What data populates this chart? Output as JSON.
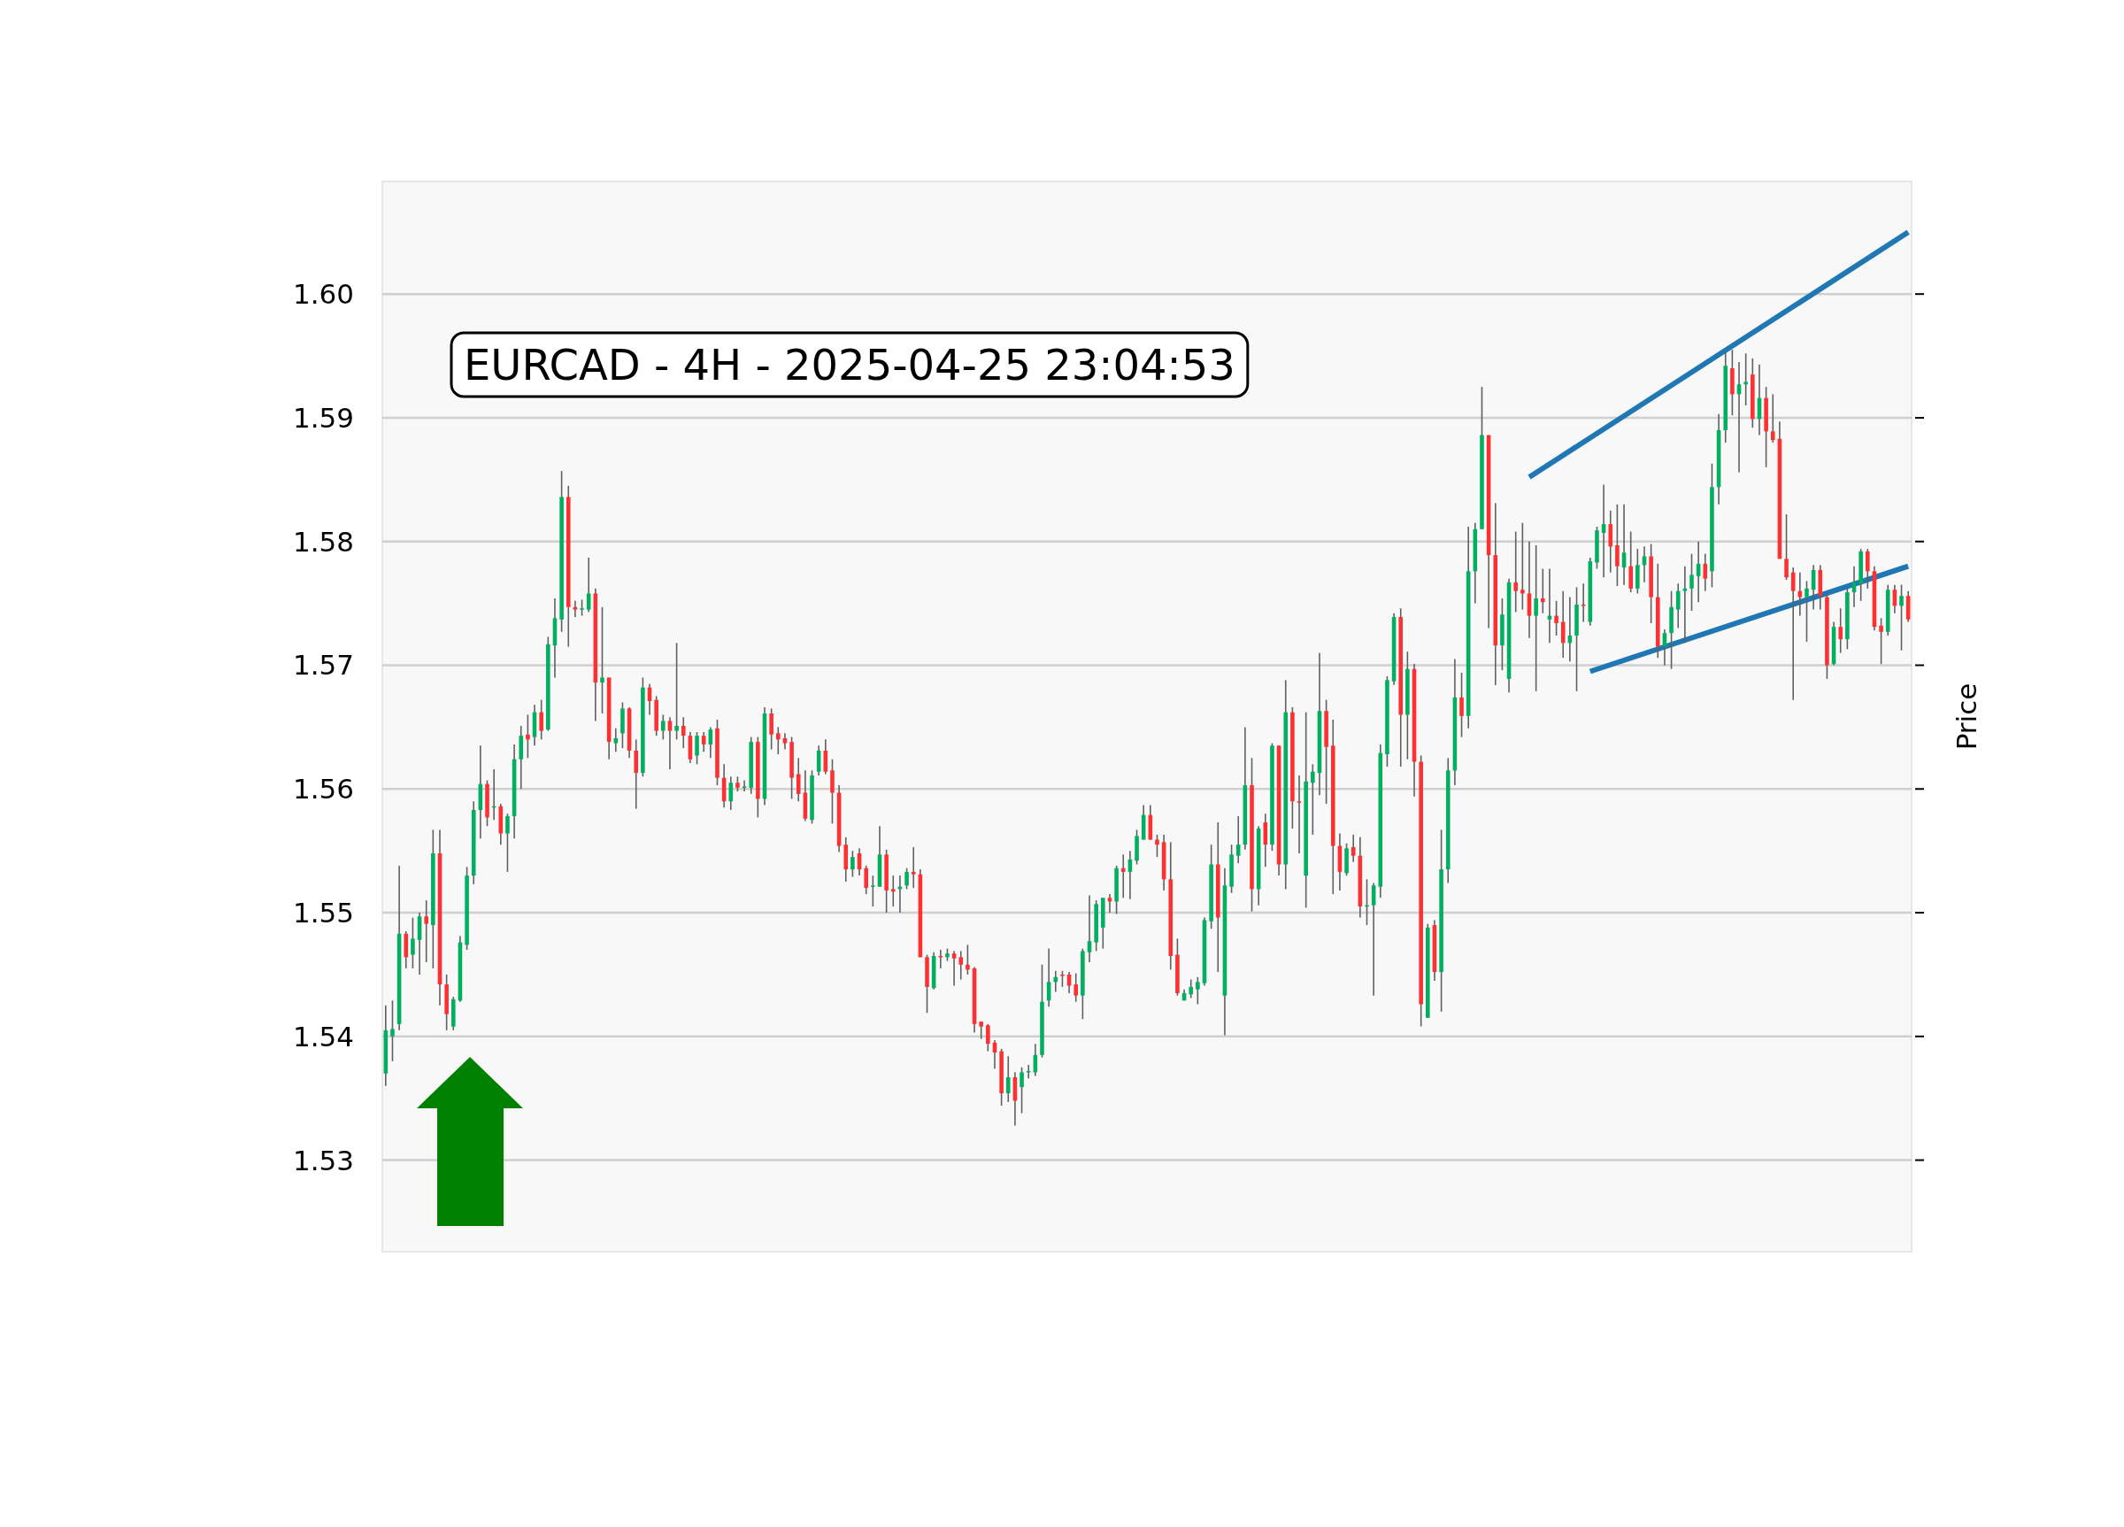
{
  "chart_data": {
    "type": "candlestick",
    "title": "EURCAD - 4H - 2025-04-25 23:04:53",
    "ylabel": "Price",
    "categories": [
      null,
      null,
      null,
      null,
      null,
      null,
      null,
      null,
      null,
      null,
      null,
      null,
      null,
      null,
      null,
      null,
      null,
      null,
      null,
      null,
      null,
      null,
      null,
      null,
      null,
      null,
      null,
      null,
      null,
      null,
      null,
      null,
      null,
      null,
      null,
      null,
      null,
      null,
      null,
      null,
      null,
      null,
      null,
      null,
      null,
      null,
      null,
      null,
      null,
      null,
      null,
      null,
      null,
      null,
      null,
      null,
      null,
      null,
      null,
      null,
      null,
      null,
      null,
      null,
      null,
      null,
      null,
      null,
      null,
      null,
      null,
      null,
      null,
      null,
      null,
      null,
      null,
      null,
      null,
      null,
      null,
      null,
      null,
      null,
      null,
      null,
      null,
      null,
      null,
      null,
      null,
      null,
      null,
      null,
      null,
      null,
      null,
      null,
      null,
      null,
      null,
      null,
      null,
      null,
      null,
      null,
      null,
      null,
      null,
      null,
      null,
      null,
      null,
      null,
      null,
      null,
      null,
      null,
      null,
      null,
      null,
      null,
      null,
      null,
      null,
      null,
      null,
      null,
      null,
      null,
      null,
      null,
      null,
      null,
      null,
      null,
      null,
      null,
      null,
      null,
      null,
      null,
      null,
      null,
      null,
      null,
      null,
      null,
      null,
      null,
      null,
      null,
      null,
      null,
      null,
      null,
      null,
      null,
      null,
      null,
      null,
      null,
      null,
      null,
      null,
      null,
      null,
      null,
      null,
      null,
      null,
      null,
      null,
      null,
      null,
      null,
      null,
      null,
      null,
      null,
      null,
      null,
      null,
      null,
      null,
      null,
      null,
      null,
      null,
      null,
      null,
      null,
      null,
      null,
      null,
      null,
      null,
      null,
      null,
      null,
      null,
      null,
      null,
      null,
      null,
      null,
      null,
      null,
      null,
      null,
      null,
      null,
      null,
      null,
      null,
      null,
      null,
      null,
      null,
      null,
      null,
      null,
      null,
      null,
      null,
      null
    ],
    "ohlc": [
      [
        1.537,
        1.5425,
        1.536,
        1.5405
      ],
      [
        1.54,
        1.5429,
        1.538,
        1.5406
      ],
      [
        1.541,
        1.5538,
        1.5405,
        1.5483
      ],
      [
        1.5483,
        1.5485,
        1.5455,
        1.5464
      ],
      [
        1.5466,
        1.5496,
        1.5455,
        1.5479
      ],
      [
        1.5478,
        1.55,
        1.545,
        1.5497
      ],
      [
        1.5497,
        1.551,
        1.546,
        1.5491
      ],
      [
        1.549,
        1.5567,
        1.5455,
        1.5548
      ],
      [
        1.5548,
        1.5567,
        1.5425,
        1.5442
      ],
      [
        1.5442,
        1.545,
        1.5405,
        1.5418
      ],
      [
        1.5408,
        1.5432,
        1.5405,
        1.543
      ],
      [
        1.5429,
        1.5481,
        1.5428,
        1.5476
      ],
      [
        1.5474,
        1.5537,
        1.547,
        1.553
      ],
      [
        1.553,
        1.559,
        1.5523,
        1.5583
      ],
      [
        1.5583,
        1.5635,
        1.556,
        1.5604
      ],
      [
        1.5604,
        1.5607,
        1.557,
        1.5577
      ],
      [
        1.5585,
        1.5616,
        1.5575,
        1.5586
      ],
      [
        1.5586,
        1.5588,
        1.5555,
        1.5564
      ],
      [
        1.5564,
        1.558,
        1.5533,
        1.5578
      ],
      [
        1.5578,
        1.5636,
        1.556,
        1.5624
      ],
      [
        1.5624,
        1.5651,
        1.56,
        1.5643
      ],
      [
        1.5644,
        1.566,
        1.5625,
        1.564
      ],
      [
        1.5642,
        1.5668,
        1.5635,
        1.5662
      ],
      [
        1.5662,
        1.5672,
        1.564,
        1.5647
      ],
      [
        1.5648,
        1.5723,
        1.5647,
        1.5717
      ],
      [
        1.5716,
        1.5754,
        1.569,
        1.5738
      ],
      [
        1.5737,
        1.5857,
        1.5727,
        1.5836
      ],
      [
        1.5836,
        1.5845,
        1.5715,
        1.5747
      ],
      [
        1.5747,
        1.5752,
        1.5739,
        1.5745
      ],
      [
        1.5745,
        1.5753,
        1.574,
        1.5746
      ],
      [
        1.5745,
        1.5787,
        1.5743,
        1.5758
      ],
      [
        1.5758,
        1.5762,
        1.5655,
        1.5686
      ],
      [
        1.5686,
        1.5747,
        1.5661,
        1.569
      ],
      [
        1.569,
        1.569,
        1.5624,
        1.5638
      ],
      [
        1.5637,
        1.5649,
        1.563,
        1.5641
      ],
      [
        1.5645,
        1.567,
        1.5633,
        1.5665
      ],
      [
        1.5665,
        1.5666,
        1.5625,
        1.5631
      ],
      [
        1.5631,
        1.564,
        1.5584,
        1.5613
      ],
      [
        1.5613,
        1.569,
        1.561,
        1.5682
      ],
      [
        1.5682,
        1.5685,
        1.566,
        1.5671
      ],
      [
        1.5672,
        1.5675,
        1.5643,
        1.5647
      ],
      [
        1.5647,
        1.566,
        1.564,
        1.5655
      ],
      [
        1.5655,
        1.5658,
        1.5616,
        1.5647
      ],
      [
        1.5647,
        1.5718,
        1.564,
        1.5651
      ],
      [
        1.5651,
        1.5658,
        1.5633,
        1.5643
      ],
      [
        1.5643,
        1.5646,
        1.5621,
        1.5624
      ],
      [
        1.5627,
        1.5646,
        1.562,
        1.5643
      ],
      [
        1.5643,
        1.5646,
        1.563,
        1.5636
      ],
      [
        1.5636,
        1.565,
        1.5625,
        1.5648
      ],
      [
        1.5649,
        1.5656,
        1.5603,
        1.5609
      ],
      [
        1.5609,
        1.562,
        1.5585,
        1.559
      ],
      [
        1.559,
        1.561,
        1.5583,
        1.5605
      ],
      [
        1.5605,
        1.561,
        1.5598,
        1.5601
      ],
      [
        1.5601,
        1.5607,
        1.5598,
        1.5602
      ],
      [
        1.5601,
        1.5642,
        1.5596,
        1.5638
      ],
      [
        1.5638,
        1.5642,
        1.5577,
        1.5592
      ],
      [
        1.5592,
        1.5666,
        1.5587,
        1.5661
      ],
      [
        1.5661,
        1.5665,
        1.5632,
        1.5644
      ],
      [
        1.5645,
        1.565,
        1.5628,
        1.564
      ],
      [
        1.5641,
        1.5645,
        1.5632,
        1.5637
      ],
      [
        1.5638,
        1.5642,
        1.5592,
        1.5609
      ],
      [
        1.5612,
        1.5625,
        1.559,
        1.5596
      ],
      [
        1.5597,
        1.5615,
        1.5574,
        1.5576
      ],
      [
        1.5575,
        1.5615,
        1.5572,
        1.5611
      ],
      [
        1.5614,
        1.5635,
        1.5611,
        1.5631
      ],
      [
        1.5631,
        1.564,
        1.5612,
        1.5614
      ],
      [
        1.5615,
        1.5624,
        1.5572,
        1.5597
      ],
      [
        1.5597,
        1.5603,
        1.5549,
        1.5554
      ],
      [
        1.5555,
        1.5561,
        1.5525,
        1.5535
      ],
      [
        1.5535,
        1.555,
        1.5529,
        1.5545
      ],
      [
        1.5548,
        1.5552,
        1.553,
        1.5535
      ],
      [
        1.5536,
        1.5538,
        1.5515,
        1.552
      ],
      [
        1.5521,
        1.553,
        1.5505,
        1.5522
      ],
      [
        1.5521,
        1.557,
        1.5521,
        1.5547
      ],
      [
        1.5547,
        1.5551,
        1.55,
        1.5518
      ],
      [
        1.5519,
        1.553,
        1.5505,
        1.5517
      ],
      [
        1.5519,
        1.553,
        1.55,
        1.5521
      ],
      [
        1.5522,
        1.5536,
        1.5519,
        1.5533
      ],
      [
        1.5533,
        1.5553,
        1.552,
        1.5531
      ],
      [
        1.5531,
        1.5535,
        1.5464,
        1.5464
      ],
      [
        1.5464,
        1.5466,
        1.5419,
        1.544
      ],
      [
        1.5439,
        1.5468,
        1.5438,
        1.5465
      ],
      [
        1.5465,
        1.547,
        1.5455,
        1.5464
      ],
      [
        1.5464,
        1.5471,
        1.5461,
        1.5467
      ],
      [
        1.5467,
        1.5469,
        1.5441,
        1.5463
      ],
      [
        1.5464,
        1.5469,
        1.5446,
        1.5458
      ],
      [
        1.5458,
        1.5474,
        1.545,
        1.5454
      ],
      [
        1.5455,
        1.5456,
        1.5403,
        1.541
      ],
      [
        1.5412,
        1.5412,
        1.5398,
        1.5408
      ],
      [
        1.5409,
        1.541,
        1.5388,
        1.5394
      ],
      [
        1.5395,
        1.5397,
        1.5374,
        1.5387
      ],
      [
        1.5388,
        1.539,
        1.5344,
        1.5354
      ],
      [
        1.5354,
        1.5384,
        1.5347,
        1.5367
      ],
      [
        1.5367,
        1.5371,
        1.5328,
        1.5348
      ],
      [
        1.5359,
        1.5375,
        1.5338,
        1.5371
      ],
      [
        1.5371,
        1.5377,
        1.5366,
        1.5372
      ],
      [
        1.5371,
        1.5394,
        1.5368,
        1.5385
      ],
      [
        1.5385,
        1.5458,
        1.5383,
        1.5428
      ],
      [
        1.5429,
        1.5471,
        1.5424,
        1.5444
      ],
      [
        1.5444,
        1.5453,
        1.5436,
        1.5448
      ],
      [
        1.545,
        1.5453,
        1.544,
        1.5449
      ],
      [
        1.545,
        1.5452,
        1.5435,
        1.5441
      ],
      [
        1.5442,
        1.5451,
        1.5428,
        1.5433
      ],
      [
        1.5433,
        1.5471,
        1.5414,
        1.5469
      ],
      [
        1.5468,
        1.5514,
        1.546,
        1.5477
      ],
      [
        1.5476,
        1.551,
        1.5469,
        1.5507
      ],
      [
        1.5488,
        1.5512,
        1.5471,
        1.5512
      ],
      [
        1.5512,
        1.5515,
        1.55,
        1.5509
      ],
      [
        1.5509,
        1.5538,
        1.5499,
        1.5536
      ],
      [
        1.5536,
        1.5547,
        1.5512,
        1.5533
      ],
      [
        1.5533,
        1.555,
        1.5511,
        1.5543
      ],
      [
        1.5542,
        1.5567,
        1.5539,
        1.5562
      ],
      [
        1.5559,
        1.5587,
        1.5559,
        1.5579
      ],
      [
        1.5579,
        1.5587,
        1.5559,
        1.5559
      ],
      [
        1.5559,
        1.5563,
        1.5545,
        1.5555
      ],
      [
        1.5557,
        1.5563,
        1.5518,
        1.5527
      ],
      [
        1.5527,
        1.5557,
        1.5454,
        1.5465
      ],
      [
        1.5466,
        1.5479,
        1.5433,
        1.5435
      ],
      [
        1.5429,
        1.5438,
        1.5429,
        1.5435
      ],
      [
        1.5434,
        1.5446,
        1.5431,
        1.544
      ],
      [
        1.5438,
        1.5448,
        1.5426,
        1.5444
      ],
      [
        1.5443,
        1.5496,
        1.5441,
        1.5494
      ],
      [
        1.5493,
        1.5555,
        1.5487,
        1.5539
      ],
      [
        1.5539,
        1.5573,
        1.5452,
        1.5496
      ],
      [
        1.5433,
        1.5536,
        1.5401,
        1.5522
      ],
      [
        1.5521,
        1.5555,
        1.5516,
        1.5547
      ],
      [
        1.5546,
        1.5578,
        1.554,
        1.5555
      ],
      [
        1.5555,
        1.565,
        1.5551,
        1.5603
      ],
      [
        1.5603,
        1.5625,
        1.5501,
        1.5519
      ],
      [
        1.5519,
        1.557,
        1.5506,
        1.5568
      ],
      [
        1.5573,
        1.558,
        1.5537,
        1.5555
      ],
      [
        1.5555,
        1.5637,
        1.555,
        1.5635
      ],
      [
        1.5635,
        1.5635,
        1.553,
        1.5539
      ],
      [
        1.5539,
        1.5688,
        1.5519,
        1.5662
      ],
      [
        1.5662,
        1.5666,
        1.5568,
        1.559
      ],
      [
        1.559,
        1.5611,
        1.5548,
        1.5589
      ],
      [
        1.553,
        1.5662,
        1.5504,
        1.5606
      ],
      [
        1.5605,
        1.562,
        1.5563,
        1.5614
      ],
      [
        1.5613,
        1.571,
        1.5595,
        1.5663
      ],
      [
        1.5663,
        1.5672,
        1.5588,
        1.5634
      ],
      [
        1.5635,
        1.5656,
        1.5515,
        1.5554
      ],
      [
        1.5554,
        1.5564,
        1.5518,
        1.5533
      ],
      [
        1.5532,
        1.5556,
        1.553,
        1.5552
      ],
      [
        1.5553,
        1.5563,
        1.5541,
        1.5546
      ],
      [
        1.5546,
        1.5561,
        1.5496,
        1.5505
      ],
      [
        1.5505,
        1.5527,
        1.549,
        1.5506
      ],
      [
        1.5506,
        1.5524,
        1.5433,
        1.5522
      ],
      [
        1.5521,
        1.5636,
        1.5512,
        1.5629
      ],
      [
        1.5628,
        1.5691,
        1.5618,
        1.5688
      ],
      [
        1.5687,
        1.5742,
        1.5684,
        1.5739
      ],
      [
        1.5739,
        1.5746,
        1.5618,
        1.566
      ],
      [
        1.566,
        1.5711,
        1.5624,
        1.5697
      ],
      [
        1.5697,
        1.5701,
        1.5594,
        1.5622
      ],
      [
        1.5622,
        1.5627,
        1.5408,
        1.5426
      ],
      [
        1.5415,
        1.5491,
        1.5415,
        1.5488
      ],
      [
        1.549,
        1.5494,
        1.5445,
        1.5452
      ],
      [
        1.5452,
        1.5567,
        1.542,
        1.5535
      ],
      [
        1.5535,
        1.5625,
        1.5524,
        1.5615
      ],
      [
        1.5615,
        1.5705,
        1.5603,
        1.5674
      ],
      [
        1.5674,
        1.5694,
        1.5642,
        1.5659
      ],
      [
        1.5659,
        1.5812,
        1.5649,
        1.5776
      ],
      [
        1.5776,
        1.5815,
        1.575,
        1.581
      ],
      [
        1.581,
        1.5925,
        1.581,
        1.5886
      ],
      [
        1.5886,
        1.5886,
        1.573,
        1.5789
      ],
      [
        1.5789,
        1.5831,
        1.5684,
        1.5716
      ],
      [
        1.5716,
        1.5754,
        1.5696,
        1.5741
      ],
      [
        1.5689,
        1.577,
        1.5678,
        1.5767
      ],
      [
        1.5767,
        1.5808,
        1.5743,
        1.576
      ],
      [
        1.5761,
        1.5815,
        1.5745,
        1.5758
      ],
      [
        1.5758,
        1.58,
        1.5722,
        1.574
      ],
      [
        1.574,
        1.5797,
        1.5679,
        1.5754
      ],
      [
        1.5754,
        1.5778,
        1.5742,
        1.5751
      ],
      [
        1.5737,
        1.5778,
        1.5718,
        1.574
      ],
      [
        1.574,
        1.5752,
        1.5724,
        1.5734
      ],
      [
        1.5735,
        1.576,
        1.5706,
        1.5718
      ],
      [
        1.5718,
        1.5755,
        1.5703,
        1.5724
      ],
      [
        1.5724,
        1.5763,
        1.5679,
        1.5749
      ],
      [
        1.5749,
        1.5766,
        1.5735,
        1.5748
      ],
      [
        1.5735,
        1.5787,
        1.5732,
        1.5784
      ],
      [
        1.5783,
        1.5812,
        1.5778,
        1.5809
      ],
      [
        1.5807,
        1.5846,
        1.5771,
        1.5814
      ],
      [
        1.5814,
        1.5825,
        1.5775,
        1.5796
      ],
      [
        1.5797,
        1.583,
        1.5764,
        1.578
      ],
      [
        1.5779,
        1.583,
        1.5765,
        1.5791
      ],
      [
        1.578,
        1.5808,
        1.5759,
        1.5762
      ],
      [
        1.5762,
        1.5794,
        1.5758,
        1.5781
      ],
      [
        1.5781,
        1.5796,
        1.5767,
        1.5788
      ],
      [
        1.5788,
        1.5798,
        1.5734,
        1.5755
      ],
      [
        1.5755,
        1.5782,
        1.5706,
        1.5715
      ],
      [
        1.5715,
        1.5729,
        1.57,
        1.5726
      ],
      [
        1.5726,
        1.576,
        1.5697,
        1.5747
      ],
      [
        1.5745,
        1.5766,
        1.573,
        1.576
      ],
      [
        1.576,
        1.578,
        1.5718,
        1.5762
      ],
      [
        1.5762,
        1.579,
        1.5744,
        1.5773
      ],
      [
        1.5772,
        1.58,
        1.5751,
        1.5782
      ],
      [
        1.5782,
        1.579,
        1.576,
        1.577
      ],
      [
        1.5776,
        1.5863,
        1.5763,
        1.5844
      ],
      [
        1.5844,
        1.5903,
        1.583,
        1.589
      ],
      [
        1.589,
        1.5953,
        1.588,
        1.5942
      ],
      [
        1.594,
        1.5955,
        1.5902,
        1.5919
      ],
      [
        1.5919,
        1.5945,
        1.5856,
        1.5927
      ],
      [
        1.5927,
        1.5952,
        1.591,
        1.5929
      ],
      [
        1.5935,
        1.5948,
        1.5892,
        1.5899
      ],
      [
        1.5899,
        1.5943,
        1.5886,
        1.5916
      ],
      [
        1.5916,
        1.5925,
        1.586,
        1.5889
      ],
      [
        1.5889,
        1.5919,
        1.588,
        1.5882
      ],
      [
        1.5883,
        1.5897,
        1.5786,
        1.5786
      ],
      [
        1.5786,
        1.5822,
        1.5769,
        1.5771
      ],
      [
        1.5775,
        1.5779,
        1.5672,
        1.576
      ],
      [
        1.576,
        1.5775,
        1.574,
        1.5755
      ],
      [
        1.5755,
        1.5768,
        1.5719,
        1.5762
      ],
      [
        1.5761,
        1.5781,
        1.5745,
        1.5777
      ],
      [
        1.5777,
        1.5781,
        1.5745,
        1.5756
      ],
      [
        1.5755,
        1.5757,
        1.5689,
        1.57
      ],
      [
        1.5701,
        1.5735,
        1.57,
        1.5731
      ],
      [
        1.5731,
        1.5746,
        1.571,
        1.5721
      ],
      [
        1.5721,
        1.5762,
        1.5713,
        1.5759
      ],
      [
        1.5759,
        1.578,
        1.5747,
        1.5767
      ],
      [
        1.5766,
        1.5794,
        1.5752,
        1.5792
      ],
      [
        1.5792,
        1.5794,
        1.5762,
        1.5776
      ],
      [
        1.5776,
        1.578,
        1.5728,
        1.5731
      ],
      [
        1.5732,
        1.5738,
        1.5701,
        1.5727
      ],
      [
        1.5727,
        1.5765,
        1.5724,
        1.5761
      ],
      [
        1.5761,
        1.5765,
        1.5742,
        1.5748
      ],
      [
        1.5748,
        1.5765,
        1.5712,
        1.5756
      ],
      [
        1.5756,
        1.576,
        1.5735,
        1.5737
      ]
    ],
    "series": [
      {
        "type": "line",
        "color": "#1f77b4",
        "values": [
          null,
          null,
          null,
          null,
          null,
          null,
          null,
          null,
          null,
          null,
          null,
          null,
          null,
          null,
          null,
          null,
          null,
          null,
          null,
          null,
          null,
          null,
          null,
          null,
          null,
          null,
          null,
          null,
          null,
          null,
          null,
          null,
          null,
          null,
          null,
          null,
          null,
          null,
          null,
          null,
          null,
          null,
          null,
          null,
          null,
          null,
          null,
          null,
          null,
          null,
          null,
          null,
          null,
          null,
          null,
          null,
          null,
          null,
          null,
          null,
          null,
          null,
          null,
          null,
          null,
          null,
          null,
          null,
          null,
          null,
          null,
          null,
          null,
          null,
          null,
          null,
          null,
          null,
          null,
          null,
          null,
          null,
          null,
          null,
          null,
          null,
          null,
          null,
          null,
          null,
          null,
          null,
          null,
          null,
          null,
          null,
          null,
          null,
          null,
          null,
          null,
          null,
          null,
          null,
          null,
          null,
          null,
          null,
          null,
          null,
          null,
          null,
          null,
          null,
          null,
          null,
          null,
          null,
          null,
          null,
          null,
          null,
          null,
          null,
          null,
          null,
          null,
          null,
          null,
          null,
          null,
          null,
          null,
          null,
          null,
          null,
          null,
          null,
          null,
          null,
          null,
          null,
          null,
          null,
          null,
          null,
          null,
          null,
          null,
          null,
          null,
          null,
          null,
          null,
          null,
          null,
          null,
          null,
          null,
          null,
          null,
          null,
          null,
          null,
          null,
          null,
          null,
          null,
          null,
          1.5852,
          null,
          null,
          null,
          null,
          null,
          null,
          null,
          null,
          null,
          null,
          null,
          null,
          null,
          null,
          null,
          null,
          null,
          null,
          null,
          null,
          null,
          null,
          null,
          null,
          null,
          null,
          null,
          null,
          null,
          null,
          null,
          null,
          null,
          null,
          null,
          null,
          null,
          null,
          null,
          null,
          null,
          null,
          null,
          null,
          null,
          null,
          null,
          null,
          null,
          null,
          null,
          null,
          null,
          null,
          null,
          1.605
        ]
      },
      {
        "type": "line",
        "color": "#1f77b4",
        "values": [
          null,
          null,
          null,
          null,
          null,
          null,
          null,
          null,
          null,
          null,
          null,
          null,
          null,
          null,
          null,
          null,
          null,
          null,
          null,
          null,
          null,
          null,
          null,
          null,
          null,
          null,
          null,
          null,
          null,
          null,
          null,
          null,
          null,
          null,
          null,
          null,
          null,
          null,
          null,
          null,
          null,
          null,
          null,
          null,
          null,
          null,
          null,
          null,
          null,
          null,
          null,
          null,
          null,
          null,
          null,
          null,
          null,
          null,
          null,
          null,
          null,
          null,
          null,
          null,
          null,
          null,
          null,
          null,
          null,
          null,
          null,
          null,
          null,
          null,
          null,
          null,
          null,
          null,
          null,
          null,
          null,
          null,
          null,
          null,
          null,
          null,
          null,
          null,
          null,
          null,
          null,
          null,
          null,
          null,
          null,
          null,
          null,
          null,
          null,
          null,
          null,
          null,
          null,
          null,
          null,
          null,
          null,
          null,
          null,
          null,
          null,
          null,
          null,
          null,
          null,
          null,
          null,
          null,
          null,
          null,
          null,
          null,
          null,
          null,
          null,
          null,
          null,
          null,
          null,
          null,
          null,
          null,
          null,
          null,
          null,
          null,
          null,
          null,
          null,
          null,
          null,
          null,
          null,
          null,
          null,
          null,
          null,
          null,
          null,
          null,
          null,
          null,
          null,
          null,
          null,
          null,
          null,
          null,
          null,
          null,
          null,
          null,
          null,
          null,
          null,
          null,
          null,
          null,
          null,
          null,
          null,
          null,
          null,
          null,
          null,
          null,
          null,
          null,
          1.5695,
          null,
          null,
          null,
          null,
          null,
          null,
          null,
          null,
          null,
          null,
          null,
          null,
          null,
          null,
          null,
          null,
          null,
          null,
          null,
          null,
          null,
          null,
          null,
          null,
          null,
          null,
          null,
          null,
          null,
          null,
          null,
          null,
          null,
          null,
          null,
          null,
          null,
          null,
          null,
          null,
          null,
          null,
          null,
          null,
          null,
          null,
          1.578
        ]
      }
    ],
    "ylim": [
      1.5226,
      1.6091
    ],
    "yticks": [
      1.53,
      1.54,
      1.55,
      1.56,
      1.57,
      1.58,
      1.59,
      {
        "value": 1.6,
        "label": "1.60"
      }
    ],
    "grid": "y",
    "tick_labels": "y"
  }
}
